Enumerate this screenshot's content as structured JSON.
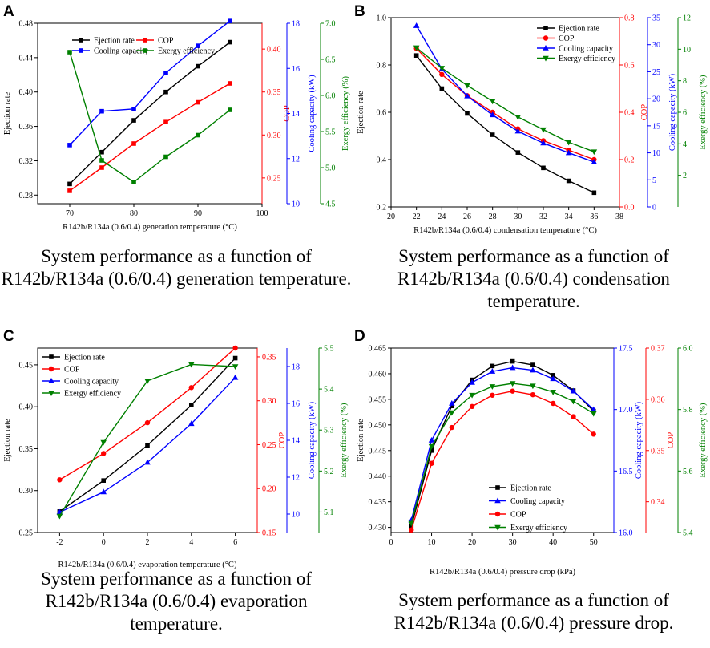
{
  "panels": [
    {
      "letter": "A",
      "caption": "System performance as a function of R142b/R134a (0.6/0.4) generation temperature.",
      "chart_data": {
        "type": "line",
        "xlabel": "R142b/R134a (0.6/0.4) generation temperature (°C)",
        "x": [
          70,
          75,
          80,
          85,
          90,
          95
        ],
        "xlim": [
          65,
          100
        ],
        "xticks": [
          70,
          80,
          90,
          100
        ],
        "xtick_labels": [
          "70",
          "80",
          "90",
          "100"
        ],
        "legend": "top-center",
        "axes": [
          {
            "label": "Ejection rate",
            "color": "#000000",
            "ylim": [
              0.27,
              0.48
            ],
            "ticks": [
              0.28,
              0.32,
              0.36,
              0.4,
              0.44,
              0.48
            ],
            "tick_labels": [
              "0.28",
              "0.32",
              "0.36",
              "0.40",
              "0.44",
              "0.48"
            ]
          },
          {
            "label": "COP",
            "color": "#ff0000",
            "ylim": [
              0.22,
              0.43
            ],
            "ticks": [
              0.25,
              0.3,
              0.35,
              0.4
            ],
            "tick_labels": [
              "0.25",
              "0.30",
              "0.35",
              "0.40"
            ]
          },
          {
            "label": "Cooling capacity (kW)",
            "color": "#0000ff",
            "ylim": [
              10,
              18
            ],
            "ticks": [
              10,
              12,
              14,
              16,
              18
            ],
            "tick_labels": [
              "10",
              "12",
              "14",
              "16",
              "18"
            ]
          },
          {
            "label": "Exergy efficiency (%)",
            "color": "#008000",
            "ylim": [
              4.5,
              7.0
            ],
            "ticks": [
              4.5,
              5.0,
              5.5,
              6.0,
              6.5,
              7.0
            ],
            "tick_labels": [
              "4.5",
              "5.0",
              "5.5",
              "6.0",
              "6.5",
              "7.0"
            ]
          }
        ],
        "series": [
          {
            "name": "Ejection rate",
            "axis": 0,
            "color": "#000000",
            "marker": "square",
            "values": [
              0.293,
              0.33,
              0.367,
              0.4,
              0.43,
              0.458
            ]
          },
          {
            "name": "COP",
            "axis": 1,
            "color": "#ff0000",
            "marker": "square",
            "values": [
              0.235,
              0.262,
              0.29,
              0.315,
              0.338,
              0.36
            ]
          },
          {
            "name": "Cooling capacity",
            "axis": 2,
            "color": "#0000ff",
            "marker": "square",
            "values": [
              12.6,
              14.1,
              14.2,
              15.8,
              17.0,
              18.1
            ]
          },
          {
            "name": "Exergy efficiency",
            "axis": 3,
            "color": "#008000",
            "marker": "square",
            "values": [
              6.6,
              5.1,
              4.8,
              5.15,
              5.45,
              5.8
            ]
          }
        ]
      }
    },
    {
      "letter": "B",
      "caption": "System performance as a function of R142b/R134a (0.6/0.4) condensation temperature.",
      "chart_data": {
        "type": "line",
        "xlabel": "R142b/R134a (0.6/0.4) condensation temperature (°C)",
        "x": [
          22,
          24,
          26,
          28,
          30,
          32,
          34,
          36
        ],
        "xlim": [
          20,
          38
        ],
        "xticks": [
          20,
          22,
          24,
          26,
          28,
          30,
          32,
          34,
          36,
          38
        ],
        "xtick_labels": [
          "20",
          "22",
          "24",
          "26",
          "28",
          "30",
          "32",
          "34",
          "36",
          "38"
        ],
        "legend": "top-right",
        "axes": [
          {
            "label": "Ejection rate",
            "color": "#000000",
            "ylim": [
              0.2,
              1.0
            ],
            "ticks": [
              0.2,
              0.4,
              0.6,
              0.8,
              1.0
            ],
            "tick_labels": [
              "0.2",
              "0.4",
              "0.6",
              "0.8",
              "1.0"
            ]
          },
          {
            "label": "COP",
            "color": "#ff0000",
            "ylim": [
              0.0,
              0.8
            ],
            "ticks": [
              0.0,
              0.2,
              0.4,
              0.6,
              0.8
            ],
            "tick_labels": [
              "0.0",
              "0.2",
              "0.4",
              "0.6",
              "0.8"
            ]
          },
          {
            "label": "Cooling capacity (kW)",
            "color": "#0000ff",
            "ylim": [
              0,
              35
            ],
            "ticks": [
              0,
              5,
              10,
              15,
              20,
              25,
              30,
              35
            ],
            "tick_labels": [
              "0",
              "5",
              "10",
              "15",
              "20",
              "25",
              "30",
              "35"
            ]
          },
          {
            "label": "Exergy efficiency (%)",
            "color": "#008000",
            "ylim": [
              0,
              12
            ],
            "ticks": [
              2,
              4,
              6,
              8,
              10,
              12
            ],
            "tick_labels": [
              "2",
              "4",
              "6",
              "8",
              "10",
              "12"
            ]
          }
        ],
        "series": [
          {
            "name": "Ejection rate",
            "axis": 0,
            "color": "#000000",
            "marker": "square",
            "values": [
              0.84,
              0.7,
              0.595,
              0.505,
              0.43,
              0.365,
              0.31,
              0.26
            ]
          },
          {
            "name": "COP",
            "axis": 1,
            "color": "#ff0000",
            "marker": "circle",
            "values": [
              0.67,
              0.56,
              0.47,
              0.4,
              0.33,
              0.28,
              0.24,
              0.2
            ]
          },
          {
            "name": "Cooling capacity",
            "axis": 2,
            "color": "#0000ff",
            "marker": "triangle-up",
            "values": [
              33.5,
              25.5,
              20.5,
              17.0,
              14.0,
              11.8,
              10.0,
              8.3
            ]
          },
          {
            "name": "Exergy efficiency",
            "axis": 3,
            "color": "#008000",
            "marker": "triangle-down",
            "values": [
              10.1,
              8.8,
              7.7,
              6.7,
              5.7,
              4.9,
              4.1,
              3.5
            ]
          }
        ]
      }
    },
    {
      "letter": "C",
      "caption": "System performance as a function of R142b/R134a (0.6/0.4) evaporation temperature.",
      "chart_data": {
        "type": "line",
        "xlabel": "R142b/R134a (0.6/0.4) evaporation temperature (°C)",
        "x": [
          -2,
          0,
          2,
          4,
          6
        ],
        "xlim": [
          -3,
          7
        ],
        "xticks": [
          -2,
          0,
          2,
          4,
          6
        ],
        "xtick_labels": [
          "-2",
          "0",
          "2",
          "4",
          "6"
        ],
        "legend": "top-left",
        "axes": [
          {
            "label": "Ejection rate",
            "color": "#000000",
            "ylim": [
              0.25,
              0.47
            ],
            "ticks": [
              0.25,
              0.3,
              0.35,
              0.4,
              0.45
            ],
            "tick_labels": [
              "0.25",
              "0.30",
              "0.35",
              "0.40",
              "0.45"
            ]
          },
          {
            "label": "COP",
            "color": "#ff0000",
            "ylim": [
              0.15,
              0.36
            ],
            "ticks": [
              0.15,
              0.2,
              0.25,
              0.3,
              0.35
            ],
            "tick_labels": [
              "0.15",
              "0.20",
              "0.25",
              "0.30",
              "0.35"
            ]
          },
          {
            "label": "Cooling capacity (kW)",
            "color": "#0000ff",
            "ylim": [
              9,
              19
            ],
            "ticks": [
              10,
              12,
              14,
              16,
              18
            ],
            "tick_labels": [
              "10",
              "12",
              "14",
              "16",
              "18"
            ]
          },
          {
            "label": "Exergy efficiency (%)",
            "color": "#008000",
            "ylim": [
              5.05,
              5.5
            ],
            "ticks": [
              5.1,
              5.2,
              5.3,
              5.4,
              5.5
            ],
            "tick_labels": [
              "5.1",
              "5.2",
              "5.3",
              "5.4",
              "5.5"
            ]
          }
        ],
        "series": [
          {
            "name": "Ejection rate",
            "axis": 0,
            "color": "#000000",
            "marker": "square",
            "values": [
              0.275,
              0.312,
              0.354,
              0.402,
              0.458
            ]
          },
          {
            "name": "COP",
            "axis": 1,
            "color": "#ff0000",
            "marker": "circle",
            "values": [
              0.21,
              0.24,
              0.275,
              0.315,
              0.36
            ]
          },
          {
            "name": "Cooling capacity",
            "axis": 2,
            "color": "#0000ff",
            "marker": "triangle-up",
            "values": [
              10.1,
              11.2,
              12.8,
              14.9,
              17.4
            ]
          },
          {
            "name": "Exergy efficiency",
            "axis": 3,
            "color": "#008000",
            "marker": "triangle-down",
            "values": [
              5.09,
              5.27,
              5.42,
              5.46,
              5.455
            ]
          }
        ]
      }
    },
    {
      "letter": "D",
      "caption": "System performance as a function of R142b/R134a (0.6/0.4) pressure drop.",
      "chart_data": {
        "type": "line",
        "xlabel": "R142b/R134a (0.6/0.4) pressure drop (kPa)",
        "x": [
          5,
          10,
          15,
          20,
          25,
          30,
          35,
          40,
          45,
          50
        ],
        "xlim": [
          0,
          55
        ],
        "xticks": [
          0,
          10,
          20,
          30,
          40,
          50
        ],
        "xtick_labels": [
          "0",
          "10",
          "20",
          "30",
          "40",
          "50"
        ],
        "legend": "bottom-right",
        "axes": [
          {
            "label": "Ejection rate",
            "color": "#000000",
            "ylim": [
              0.429,
              0.465
            ],
            "ticks": [
              0.43,
              0.435,
              0.44,
              0.445,
              0.45,
              0.455,
              0.46,
              0.465
            ],
            "tick_labels": [
              "0.430",
              "0.435",
              "0.440",
              "0.445",
              "0.450",
              "0.455",
              "0.460",
              "0.465"
            ]
          },
          {
            "label": "Cooling capacity (kW)",
            "color": "#0000ff",
            "ylim": [
              16.0,
              17.5
            ],
            "ticks": [
              16.0,
              16.5,
              17.0,
              17.5
            ],
            "tick_labels": [
              "16.0",
              "16.5",
              "17.0",
              "17.5"
            ]
          },
          {
            "label": "COP",
            "color": "#ff0000",
            "ylim": [
              0.334,
              0.37
            ],
            "ticks": [
              0.34,
              0.35,
              0.36,
              0.37
            ],
            "tick_labels": [
              "0.34",
              "0.35",
              "0.36",
              "0.37"
            ]
          },
          {
            "label": "Exergy efficiency (%)",
            "color": "#008000",
            "ylim": [
              5.4,
              6.0
            ],
            "ticks": [
              5.4,
              5.6,
              5.8,
              6.0
            ],
            "tick_labels": [
              "5.4",
              "5.6",
              "5.8",
              "6.0"
            ]
          }
        ],
        "series": [
          {
            "name": "Ejection rate",
            "axis": 0,
            "color": "#000000",
            "marker": "square",
            "values": [
              0.4302,
              0.445,
              0.4537,
              0.4588,
              0.4615,
              0.4624,
              0.4617,
              0.4597,
              0.4567,
              0.4527
            ]
          },
          {
            "name": "Cooling capacity",
            "axis": 1,
            "color": "#0000ff",
            "marker": "triangle-up",
            "values": [
              16.1,
              16.75,
              17.05,
              17.22,
              17.31,
              17.34,
              17.32,
              17.25,
              17.15,
              17.0
            ]
          },
          {
            "name": "COP",
            "axis": 2,
            "color": "#ff0000",
            "marker": "circle",
            "values": [
              0.3345,
              0.3475,
              0.3545,
              0.3586,
              0.3608,
              0.3616,
              0.3609,
              0.3592,
              0.3566,
              0.3532
            ]
          },
          {
            "name": "Exergy efficiency",
            "axis": 3,
            "color": "#008000",
            "marker": "triangle-down",
            "values": [
              5.43,
              5.68,
              5.79,
              5.847,
              5.875,
              5.885,
              5.877,
              5.857,
              5.827,
              5.787
            ]
          }
        ]
      }
    }
  ]
}
